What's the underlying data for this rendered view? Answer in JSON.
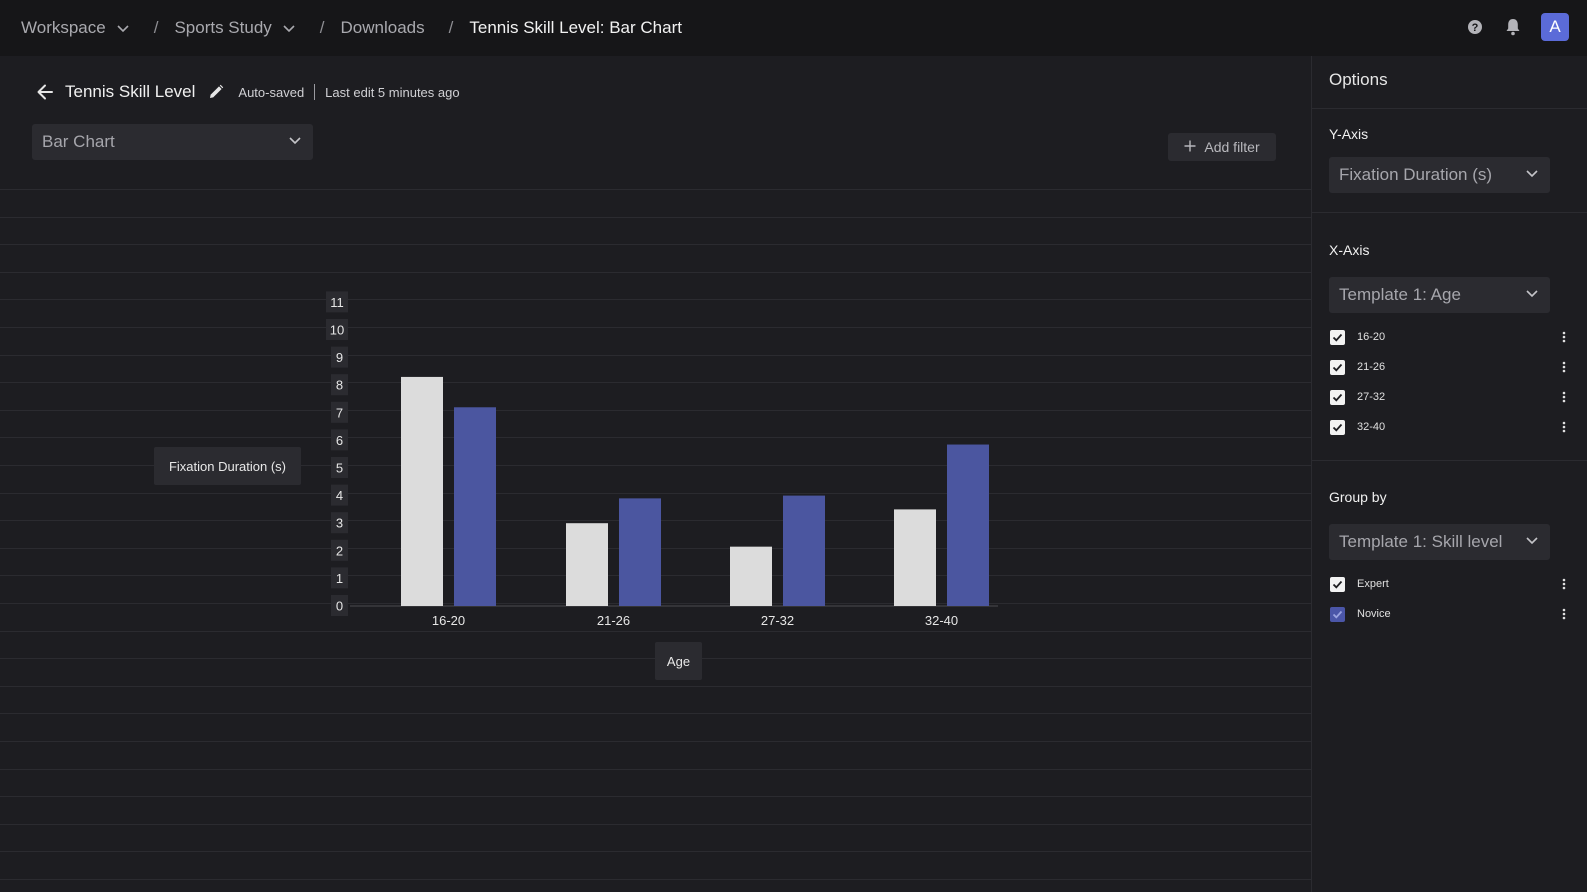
{
  "breadcrumb": {
    "items": [
      {
        "label": "Workspace",
        "dropdown": true
      },
      {
        "label": "Sports Study",
        "dropdown": true
      },
      {
        "label": "Downloads",
        "dropdown": false
      },
      {
        "label": "Tennis Skill Level: Bar Chart",
        "dropdown": false
      }
    ],
    "separator": "/"
  },
  "header_icons": [
    "help-icon",
    "bell-icon"
  ],
  "user": {
    "avatar_initial": "A",
    "avatar_color": "#5b6bd8"
  },
  "document": {
    "title": "Tennis Skill Level",
    "autosave": "Auto-saved",
    "last_edit": "Last edit 5 minutes ago"
  },
  "chart_type_select": {
    "value": "Bar Chart"
  },
  "add_filter": {
    "label": "Add filter"
  },
  "chart_data": {
    "type": "bar",
    "categories": [
      "16-20",
      "21-26",
      "27-32",
      "32-40"
    ],
    "series": [
      {
        "name": "Expert",
        "values": [
          8.3,
          3.0,
          2.15,
          3.5
        ],
        "color": "#dcdcdc"
      },
      {
        "name": "Novice",
        "values": [
          7.2,
          3.9,
          4.0,
          5.85
        ],
        "color": "#4b56a0"
      }
    ],
    "xlabel": "Age",
    "ylabel": "Fixation Duration (s)",
    "ylim": [
      0,
      11
    ],
    "yticks": [
      0,
      1,
      2,
      3,
      4,
      5,
      6,
      7,
      8,
      9,
      10,
      11
    ]
  },
  "options": {
    "title": "Options",
    "y_axis": {
      "label": "Y-Axis",
      "value": "Fixation Duration (s)"
    },
    "x_axis": {
      "label": "X-Axis",
      "value": "Template 1: Age",
      "items": [
        {
          "label": "16-20",
          "checked": true
        },
        {
          "label": "21-26",
          "checked": true
        },
        {
          "label": "27-32",
          "checked": true
        },
        {
          "label": "32-40",
          "checked": true
        }
      ]
    },
    "group_by": {
      "label": "Group by",
      "value": "Template 1: Skill level",
      "items": [
        {
          "label": "Expert",
          "checked": true,
          "color": "#f2f2f2"
        },
        {
          "label": "Novice",
          "checked": true,
          "color": "#4b56a8"
        }
      ]
    }
  }
}
